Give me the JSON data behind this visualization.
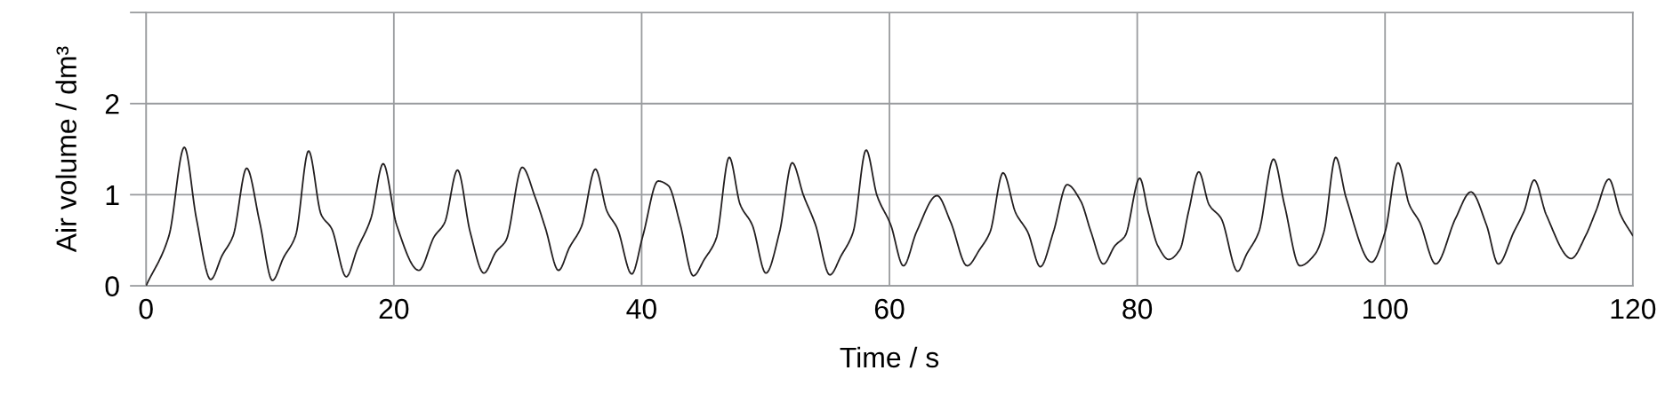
{
  "chart_data": {
    "type": "line",
    "xlabel": "Time / s",
    "ylabel": "Air volume / dm³",
    "xlim": [
      0,
      120
    ],
    "xticks": [
      0,
      20,
      40,
      60,
      80,
      100,
      120
    ],
    "ylim": [
      0,
      3
    ],
    "yticks": [
      0,
      1,
      2,
      {
        "value": 3,
        "label": null
      }
    ],
    "grid": true,
    "marker": "none",
    "line_style": "solid",
    "series": [
      {
        "color": "#231f20",
        "x": [
          0,
          1.85,
          3.09,
          4.06,
          5.22,
          6.13,
          7.03,
          8.12,
          9.17,
          10.2,
          11.1,
          12.07,
          13.12,
          14.14,
          14.97,
          16.16,
          17.04,
          18.15,
          19.14,
          20.22,
          22.02,
          23.26,
          24.09,
          25.14,
          26.16,
          27.27,
          28.23,
          29.06,
          30.36,
          31.41,
          32.24,
          33.29,
          34.17,
          35.14,
          36.27,
          37.2,
          38.04,
          39.2,
          40.1,
          41.33,
          42.15,
          43.12,
          44.17,
          45.06,
          46.02,
          47.07,
          47.96,
          48.92,
          50.03,
          51.13,
          52.15,
          53.07,
          54.03,
          55.19,
          56.1,
          57.07,
          58.12,
          59.0,
          60.1,
          61.13,
          62.18,
          63.84,
          64.94,
          66.27,
          67.29,
          68.12,
          69.17,
          70.19,
          71.16,
          72.18,
          73.23,
          74.34,
          75.44,
          76.27,
          77.27,
          78.2,
          79.03,
          80.2,
          80.9,
          81.66,
          82.54,
          83.45,
          84.15,
          84.97,
          85.8,
          86.77,
          88.1,
          88.84,
          89.81,
          91.0,
          91.88,
          93.12,
          94.36,
          95.06,
          96.02,
          96.85,
          98.92,
          100,
          101.05,
          101.96,
          102.79,
          104.09,
          105.69,
          106.93,
          108.18,
          109.14,
          110.39,
          111.22,
          112.04,
          113.01,
          115.03,
          116.19,
          117.02,
          118.07,
          119.01,
          120
        ],
        "values": [
          0,
          0.55,
          1.52,
          0.74,
          0.07,
          0.33,
          0.55,
          1.29,
          0.7,
          0.06,
          0.31,
          0.55,
          1.48,
          0.78,
          0.63,
          0.1,
          0.4,
          0.74,
          1.34,
          0.67,
          0.17,
          0.54,
          0.69,
          1.27,
          0.59,
          0.14,
          0.37,
          0.5,
          1.3,
          0.97,
          0.63,
          0.17,
          0.42,
          0.65,
          1.28,
          0.82,
          0.63,
          0.13,
          0.55,
          1.15,
          1.1,
          0.67,
          0.11,
          0.29,
          0.52,
          1.41,
          0.89,
          0.67,
          0.14,
          0.59,
          1.35,
          0.99,
          0.67,
          0.12,
          0.33,
          0.59,
          1.49,
          0.99,
          0.67,
          0.22,
          0.59,
          0.99,
          0.7,
          0.22,
          0.4,
          0.59,
          1.24,
          0.8,
          0.59,
          0.21,
          0.59,
          1.11,
          0.93,
          0.59,
          0.24,
          0.44,
          0.55,
          1.18,
          0.8,
          0.44,
          0.29,
          0.4,
          0.82,
          1.25,
          0.89,
          0.74,
          0.16,
          0.35,
          0.59,
          1.39,
          0.89,
          0.22,
          0.35,
          0.59,
          1.41,
          0.97,
          0.26,
          0.59,
          1.35,
          0.89,
          0.7,
          0.24,
          0.74,
          1.03,
          0.67,
          0.24,
          0.59,
          0.82,
          1.16,
          0.78,
          0.3,
          0.55,
          0.82,
          1.17,
          0.78,
          0.55
        ]
      }
    ]
  }
}
